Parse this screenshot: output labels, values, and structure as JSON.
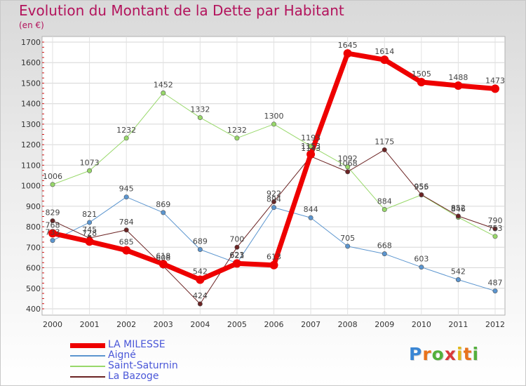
{
  "header": {
    "title": "Evolution du Montant de la Dette par Habitant",
    "subtitle": "(en €)"
  },
  "logo": {
    "text": "Proxiti"
  },
  "chart_data": {
    "type": "line",
    "title": "Evolution du Montant de la Dette par Habitant",
    "subtitle": "(en €)",
    "xlabel": "",
    "ylabel": "",
    "x": [
      "2000",
      "2001",
      "2002",
      "2003",
      "2004",
      "2005",
      "2006",
      "2007",
      "2008",
      "2009",
      "2010",
      "2011",
      "2012"
    ],
    "ylim": [
      400,
      1700
    ],
    "yticks": [
      400,
      500,
      600,
      700,
      800,
      900,
      1000,
      1100,
      1200,
      1300,
      1400,
      1500,
      1600,
      1700
    ],
    "grid": true,
    "legend_position": "bottom-left",
    "series": [
      {
        "name": "Aigné",
        "color": "#5b95cf",
        "width": 1,
        "values": [
          733,
          821,
          945,
          869,
          689,
          623,
          894,
          844,
          705,
          668,
          603,
          542,
          487
        ],
        "labels": [
          "733",
          "821",
          "945",
          "869",
          "689",
          "623",
          "894",
          "844",
          "705",
          "668",
          "603",
          "542",
          "487"
        ]
      },
      {
        "name": "Saint-Saturnin",
        "color": "#98d86a",
        "width": 1,
        "values": [
          1006,
          1073,
          1232,
          1452,
          1332,
          1232,
          1300,
          1193,
          1092,
          884,
          955,
          846,
          753
        ],
        "labels": [
          "1006",
          "1073",
          "1232",
          "1452",
          "1332",
          "1232",
          "1300",
          "1193",
          "1092",
          "884",
          "955",
          "846",
          "753"
        ]
      },
      {
        "name": "La Bazoge",
        "color": "#6b2323",
        "width": 1,
        "values": [
          829,
          745,
          784,
          608,
          424,
          700,
          922,
          1143,
          1068,
          1175,
          956,
          852,
          790
        ],
        "labels": [
          "829",
          "745",
          "784",
          "608",
          "424",
          "700",
          "922",
          "1143",
          "1068",
          "1175",
          "956",
          "852",
          "790"
        ]
      },
      {
        "name": "LA MILESSE",
        "color": "#ee0000",
        "width": 7,
        "values": [
          768,
          728,
          685,
          618,
          542,
          621,
          613,
          1153,
          1645,
          1614,
          1505,
          1488,
          1473
        ],
        "labels": [
          "768",
          "728",
          "685",
          "618",
          "542",
          "621",
          "613",
          "1153",
          "1645",
          "1614",
          "1505",
          "1488",
          "1473"
        ]
      }
    ]
  },
  "legend": [
    {
      "name": "LA MILESSE",
      "color": "#ee0000",
      "thick": 7
    },
    {
      "name": "Aigné",
      "color": "#5b95cf",
      "thick": 2
    },
    {
      "name": "Saint-Saturnin",
      "color": "#98d86a",
      "thick": 2
    },
    {
      "name": "La Bazoge",
      "color": "#6b2323",
      "thick": 2
    }
  ]
}
